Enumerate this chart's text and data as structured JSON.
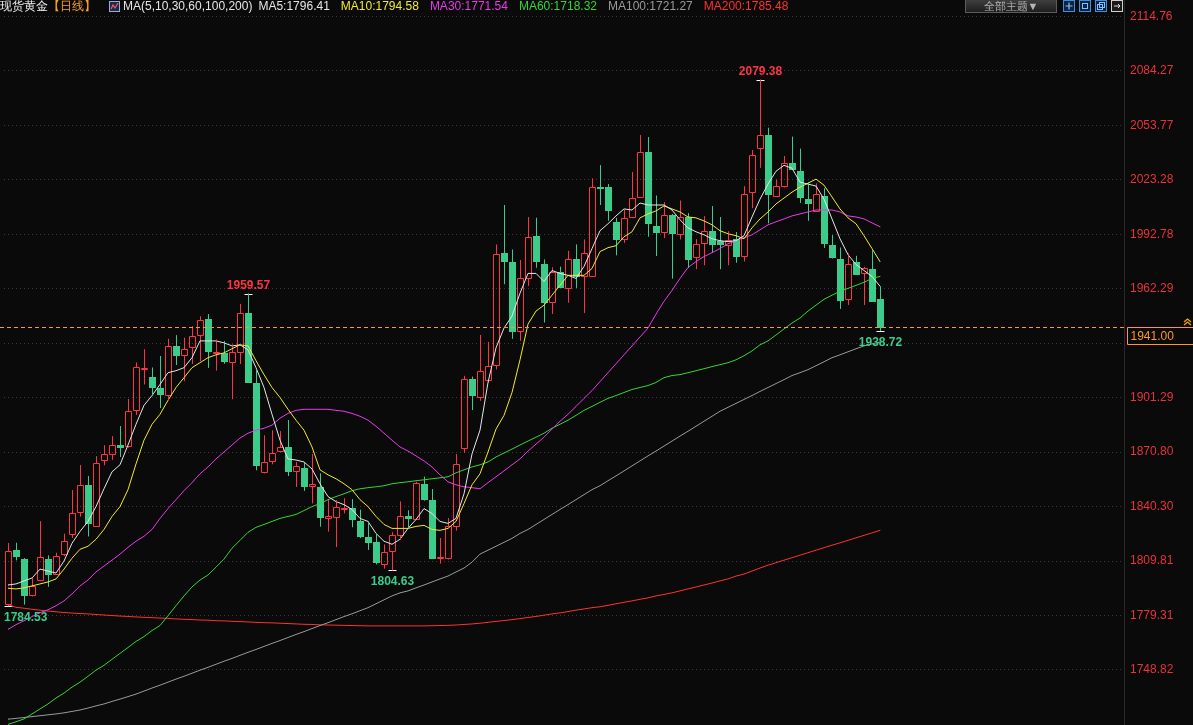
{
  "chart_data": {
    "type": "candlestick",
    "title": "现货黄金",
    "subtitle": "【日线】",
    "legend_title": "MA(5,10,30,60,100,200)",
    "categories": [
      null,
      null,
      null,
      null,
      null,
      null,
      null,
      null,
      null,
      null,
      null,
      null,
      null,
      null,
      null,
      null,
      null,
      null,
      null,
      null,
      null,
      null,
      null,
      null,
      null,
      null,
      null,
      null,
      null,
      null,
      null,
      null,
      null,
      null,
      null,
      null,
      null,
      null,
      null,
      null,
      null,
      null,
      null,
      null,
      null,
      null,
      null,
      null,
      null,
      null,
      null,
      null,
      null,
      null,
      null,
      null,
      null,
      null,
      null,
      null,
      null,
      null,
      null,
      null,
      null,
      null,
      null,
      null,
      null,
      null,
      null,
      null,
      null,
      null,
      null,
      null,
      null,
      null,
      null,
      null,
      null,
      null,
      null,
      null,
      null,
      null,
      null,
      null,
      null,
      null,
      null,
      null,
      null,
      null,
      null,
      null,
      null,
      null,
      null,
      null,
      null,
      null,
      null,
      null,
      null,
      null,
      null,
      null,
      null,
      null,
      null,
      null,
      null,
      null,
      null,
      null,
      null,
      null,
      null,
      null,
      null,
      null,
      null,
      null,
      null,
      null,
      null,
      null,
      null,
      null,
      null,
      null,
      null,
      null,
      null,
      null,
      null,
      null,
      null,
      null
    ],
    "ohlc": [
      [
        1785.7,
        1819.9,
        1784.53,
        1815.7
      ],
      [
        1815.9,
        1820.0,
        1810.3,
        1812.5
      ],
      [
        1810.7,
        1811.5,
        1785.5,
        1790.7
      ],
      [
        1790.7,
        1800.5,
        1790.0,
        1795.9
      ],
      [
        1799.2,
        1832.0,
        1798.6,
        1812.0
      ],
      [
        1811.2,
        1812.9,
        1795.5,
        1802.7
      ],
      [
        1802.3,
        1814.4,
        1802.0,
        1812.9
      ],
      [
        1813.5,
        1825.1,
        1812.5,
        1821.2
      ],
      [
        1825.1,
        1849.6,
        1822.7,
        1836.8
      ],
      [
        1837.5,
        1863.5,
        1834.8,
        1852.4
      ],
      [
        1852.5,
        1857.3,
        1823.7,
        1831.1
      ],
      [
        1829.6,
        1868.5,
        1829.2,
        1864.8
      ],
      [
        1866.6,
        1874.6,
        1863.5,
        1869.9
      ],
      [
        1869.9,
        1879.6,
        1866.6,
        1874.6
      ],
      [
        1874.6,
        1885.3,
        1868.1,
        1873.7
      ],
      [
        1874.0,
        1900.5,
        1873.3,
        1894.0
      ],
      [
        1894.6,
        1920.9,
        1891.8,
        1918.5
      ],
      [
        1917.3,
        1928.3,
        1908.8,
        1918.1
      ],
      [
        1913.1,
        1918.1,
        1902.4,
        1907.3
      ],
      [
        1907.0,
        1924.6,
        1895.5,
        1903.3
      ],
      [
        1902.9,
        1934.2,
        1899.9,
        1930.1
      ],
      [
        1930.1,
        1936.2,
        1919.6,
        1925.1
      ],
      [
        1925.1,
        1934.8,
        1910.7,
        1928.8
      ],
      [
        1929.6,
        1941.2,
        1920.3,
        1935.7
      ],
      [
        1936.6,
        1946.8,
        1921.8,
        1944.9
      ],
      [
        1945.3,
        1948.1,
        1918.1,
        1927.3
      ],
      [
        1926.2,
        1933.8,
        1916.6,
        1927.0
      ],
      [
        1926.2,
        1932.9,
        1920.3,
        1921.8
      ],
      [
        1921.4,
        1931.1,
        1900.5,
        1927.0
      ],
      [
        1927.0,
        1953.8,
        1920.3,
        1949.0
      ],
      [
        1948.6,
        1959.57,
        1909.9,
        1910.3
      ],
      [
        1909.8,
        1917.2,
        1860.7,
        1863.8
      ],
      [
        1859.4,
        1880.1,
        1858.9,
        1865.1
      ],
      [
        1865.7,
        1882.9,
        1864.0,
        1870.1
      ],
      [
        1871.2,
        1882.5,
        1870.9,
        1873.7
      ],
      [
        1873.7,
        1888.8,
        1857.5,
        1860.1
      ],
      [
        1860.1,
        1865.3,
        1851.4,
        1862.9
      ],
      [
        1862.0,
        1864.8,
        1849.2,
        1852.0
      ],
      [
        1852.0,
        1869.6,
        1842.2,
        1852.7
      ],
      [
        1851.4,
        1858.8,
        1829.2,
        1834.4
      ],
      [
        1833.8,
        1844.0,
        1826.4,
        1834.8
      ],
      [
        1834.4,
        1844.0,
        1817.7,
        1839.9
      ],
      [
        1838.8,
        1844.9,
        1836.6,
        1839.8
      ],
      [
        1839.4,
        1844.4,
        1828.8,
        1833.3
      ],
      [
        1832.5,
        1838.5,
        1822.7,
        1823.6
      ],
      [
        1823.1,
        1832.0,
        1816.2,
        1820.5
      ],
      [
        1820.3,
        1825.5,
        1807.9,
        1809.2
      ],
      [
        1808.3,
        1819.0,
        1805.7,
        1814.9
      ],
      [
        1815.3,
        1825.9,
        1804.63,
        1824.6
      ],
      [
        1824.6,
        1843.1,
        1821.8,
        1834.8
      ],
      [
        1834.8,
        1838.1,
        1828.3,
        1833.8
      ],
      [
        1833.5,
        1854.2,
        1832.9,
        1853.6
      ],
      [
        1852.7,
        1857.0,
        1843.6,
        1844.6
      ],
      [
        1844.0,
        1850.1,
        1811.2,
        1811.6
      ],
      [
        1811.4,
        1822.7,
        1808.5,
        1812.2
      ],
      [
        1811.6,
        1833.8,
        1810.7,
        1829.2
      ],
      [
        1829.2,
        1869.6,
        1827.0,
        1864.4
      ],
      [
        1873.1,
        1913.5,
        1870.5,
        1911.6
      ],
      [
        1911.6,
        1913.1,
        1894.4,
        1902.7
      ],
      [
        1901.4,
        1936.4,
        1899.7,
        1916.2
      ],
      [
        1911.4,
        1932.5,
        1909.7,
        1919.2
      ],
      [
        1919.6,
        1987.0,
        1917.2,
        1982.0
      ],
      [
        1982.5,
        2009.2,
        1964.9,
        1977.7
      ],
      [
        1977.4,
        1984.2,
        1934.4,
        1938.5
      ],
      [
        1938.5,
        1978.3,
        1933.3,
        1968.1
      ],
      [
        1968.1,
        2002.3,
        1964.0,
        1991.2
      ],
      [
        1991.6,
        2002.0,
        1974.2,
        1977.7
      ],
      [
        1976.4,
        1978.6,
        1943.5,
        1955.1
      ],
      [
        1955.1,
        1974.2,
        1948.3,
        1971.8
      ],
      [
        1971.8,
        1974.6,
        1962.9,
        1963.5
      ],
      [
        1962.9,
        1983.5,
        1954.6,
        1979.2
      ],
      [
        1979.2,
        1987.0,
        1962.9,
        1969.6
      ],
      [
        1969.6,
        1989.8,
        1948.8,
        1982.4
      ],
      [
        1969.6,
        2024.0,
        1969.0,
        2019.0
      ],
      [
        2019.4,
        2031.4,
        2009.2,
        2018.7
      ],
      [
        2019.0,
        2020.9,
        2000.5,
        2006.6
      ],
      [
        1999.9,
        2002.0,
        1981.1,
        1990.0
      ],
      [
        1990.0,
        2006.6,
        1988.1,
        2001.8
      ],
      [
        2002.3,
        2027.7,
        2001.8,
        2012.9
      ],
      [
        2013.5,
        2048.3,
        2013.1,
        2039.0
      ],
      [
        2039.0,
        2047.2,
        1991.6,
        1999.2
      ],
      [
        1997.2,
        2014.4,
        1980.7,
        1993.9
      ],
      [
        1993.9,
        2010.7,
        1990.7,
        2003.6
      ],
      [
        2003.6,
        2004.2,
        1968.1,
        1993.6
      ],
      [
        1992.7,
        2011.6,
        1990.0,
        2002.2
      ],
      [
        2002.3,
        2004.6,
        1974.0,
        1979.2
      ],
      [
        1980.1,
        1990.0,
        1973.3,
        1987.2
      ],
      [
        1987.9,
        2002.9,
        1975.5,
        1994.6
      ],
      [
        1994.8,
        2008.5,
        1982.9,
        1987.2
      ],
      [
        1988.8,
        2002.4,
        1973.3,
        1987.4
      ],
      [
        1987.0,
        1994.4,
        1975.5,
        1989.8
      ],
      [
        1990.3,
        1994.0,
        1977.0,
        1980.7
      ],
      [
        1980.7,
        2019.6,
        1977.7,
        2015.3
      ],
      [
        2016.2,
        2039.9,
        2007.5,
        2037.2
      ],
      [
        2041.2,
        2079.38,
        2030.1,
        2048.6
      ],
      [
        2048.6,
        2052.4,
        1999.0,
        2015.3
      ],
      [
        2014.0,
        2023.3,
        2013.6,
        2019.6
      ],
      [
        2019.6,
        2036.6,
        2019.0,
        2032.9
      ],
      [
        2032.5,
        2047.4,
        2028.8,
        2029.2
      ],
      [
        2028.3,
        2040.7,
        2010.3,
        2013.8
      ],
      [
        2012.5,
        2021.8,
        2000.5,
        2010.3
      ],
      [
        2006.1,
        2021.2,
        2005.5,
        2015.3
      ],
      [
        2014.4,
        2018.5,
        1985.1,
        1988.1
      ],
      [
        1986.6,
        1992.2,
        1979.2,
        1980.3
      ],
      [
        1979.2,
        1985.3,
        1951.1,
        1956.1
      ],
      [
        1956.6,
        1982.0,
        1953.3,
        1975.9
      ],
      [
        1977.0,
        1980.7,
        1970.0,
        1970.3
      ],
      [
        1970.9,
        1974.6,
        1953.3,
        1973.7
      ],
      [
        1973.3,
        1983.8,
        1955.1,
        1955.5
      ],
      [
        1956.6,
        1963.5,
        1938.72,
        1941.0
      ],
      null,
      null,
      null,
      null,
      null,
      null,
      null,
      null,
      null,
      null,
      null,
      null,
      null,
      null,
      null,
      null,
      null,
      null,
      null,
      null,
      null,
      null,
      null,
      null,
      null,
      null,
      null,
      null,
      null,
      null
    ],
    "colors": [
      "#ff3344",
      "#3ccb8b",
      "#3ccb8b",
      "#ff3344",
      "#ff3344",
      "#3ccb8b",
      "#ff3344",
      "#ff3344",
      "#ff3344",
      "#ff3344",
      "#3ccb8b",
      "#ff3344",
      "#ff3344",
      "#ff3344",
      "#3ccb8b",
      "#ff3344",
      "#ff3344",
      "#ff3344",
      "#3ccb8b",
      "#3ccb8b",
      "#ff3344",
      "#3ccb8b",
      "#ff3344",
      "#ff3344",
      "#ff3344",
      "#3ccb8b",
      "#ff3344",
      "#3ccb8b",
      "#ff3344",
      "#ff3344",
      "#3ccb8b",
      "#3ccb8b",
      "#ff3344",
      "#ff3344",
      "#ff3344",
      "#3ccb8b",
      "#ff3344",
      "#3ccb8b",
      "#ff3344",
      "#3ccb8b",
      "#ff3344",
      "#ff3344",
      "#ff3344",
      "#3ccb8b",
      "#3ccb8b",
      "#3ccb8b",
      "#3ccb8b",
      "#ff3344",
      "#ff3344",
      "#ff3344",
      "#3ccb8b",
      "#ff3344",
      "#3ccb8b",
      "#3ccb8b",
      "#ff3344",
      "#ff3344",
      "#ff3344",
      "#ff3344",
      "#3ccb8b",
      "#ff3344",
      "#ff3344",
      "#ff3344",
      "#3ccb8b",
      "#3ccb8b",
      "#ff3344",
      "#ff3344",
      "#3ccb8b",
      "#3ccb8b",
      "#ff3344",
      "#3ccb8b",
      "#ff3344",
      "#3ccb8b",
      "#ff3344",
      "#ff3344",
      "#3ccb8b",
      "#3ccb8b",
      "#3ccb8b",
      "#ff3344",
      "#ff3344",
      "#ff3344",
      "#3ccb8b",
      "#3ccb8b",
      "#ff3344",
      "#3ccb8b",
      "#ff3344",
      "#3ccb8b",
      "#ff3344",
      "#ff3344",
      "#3ccb8b",
      "#3ccb8b",
      "#ff3344",
      "#3ccb8b",
      "#ff3344",
      "#ff3344",
      "#ff3344",
      "#3ccb8b",
      "#ff3344",
      "#ff3344",
      "#3ccb8b",
      "#3ccb8b",
      "#3ccb8b",
      "#ff3344",
      "#3ccb8b",
      "#3ccb8b",
      "#3ccb8b",
      "#ff3344",
      "#3ccb8b",
      "#ff3344",
      "#3ccb8b",
      "#3ccb8b",
      null,
      null,
      null,
      null,
      null,
      null,
      null,
      null,
      null,
      null,
      null,
      null,
      null,
      null,
      null,
      null,
      null,
      null,
      null,
      null,
      null,
      null,
      null,
      null,
      null,
      null,
      null,
      null,
      null,
      null
    ],
    "series": [
      {
        "name": "MA5:1796.41",
        "type": "line",
        "color": "#e6e6e6",
        "values": [
          1796.41,
          1797.0,
          1798.7,
          1800.3,
          1805.3,
          1804.2,
          1803.1,
          1809.8,
          1819.8,
          1826.4,
          1832.0,
          1840.3,
          1850.3,
          1859.8,
          1863.7,
          1874.8,
          1886.4,
          1897.0,
          1902.5,
          1908.7,
          1915.3,
          1916.4,
          1918.1,
          1923.7,
          1933.1,
          1933.1,
          1933.1,
          1932.0,
          1930.3,
          1930.9,
          1928.1,
          1918.1,
          1907.0,
          1892.0,
          1877.5,
          1867.0,
          1866.4,
          1865.3,
          1861.4,
          1853.1,
          1845.9,
          1843.1,
          1841.4,
          1838.7,
          1833.7,
          1832.0,
          1825.3,
          1820.9,
          1819.2,
          1822.0,
          1828.1,
          1833.1,
          1839.2,
          1836.4,
          1832.0,
          1830.9,
          1833.7,
          1847.5,
          1869.8,
          1883.1,
          1909.8,
          1929.2,
          1940.3,
          1947.0,
          1959.8,
          1970.9,
          1970.9,
          1966.4,
          1972.5,
          1970.9,
          1969.8,
          1968.1,
          1974.8,
          1984.8,
          1994.8,
          1998.7,
          2003.1,
          2007.0,
          2006.4,
          2010.3,
          2009.2,
          2009.2,
          2009.2,
          2006.4,
          2000.9,
          1996.4,
          1994.2,
          1992.5,
          1990.3,
          1989.2,
          1988.7,
          1989.2,
          1992.0,
          2002.5,
          2012.5,
          2020.9,
          2028.1,
          2031.4,
          2029.8,
          2022.0,
          2020.9,
          2019.8,
          2012.5,
          2001.4,
          1990.3,
          1981.4,
          1975.9,
          1972.5,
          1969.2,
          1963.7,
          null,
          null,
          null,
          null,
          null,
          null,
          null,
          null,
          null,
          null,
          null,
          null,
          null,
          null,
          null,
          null,
          null,
          null,
          null,
          null,
          null,
          null,
          null,
          null,
          null,
          null,
          null,
          null,
          null,
          null
        ]
      },
      {
        "name": "MA10:1794.58",
        "type": "line",
        "color": "#f2ea2a",
        "values": [
          1794.58,
          1794.2,
          1794.8,
          1795.9,
          1797.0,
          1798.1,
          1799.8,
          1805.3,
          1811.4,
          1816.4,
          1818.1,
          1822.0,
          1827.5,
          1834.8,
          1840.3,
          1849.8,
          1864.2,
          1877.5,
          1886.4,
          1892.0,
          1899.8,
          1907.0,
          1912.5,
          1918.1,
          1920.9,
          1923.7,
          1925.3,
          1926.4,
          1928.7,
          1930.9,
          1930.3,
          1922.0,
          1914.2,
          1907.0,
          1901.4,
          1894.8,
          1888.7,
          1883.1,
          1873.7,
          1860.9,
          1858.1,
          1855.9,
          1853.1,
          1849.8,
          1844.2,
          1840.3,
          1834.8,
          1830.3,
          1828.1,
          1828.1,
          1828.1,
          1829.2,
          1829.8,
          1827.5,
          1827.0,
          1828.1,
          1832.0,
          1842.0,
          1852.5,
          1858.7,
          1870.9,
          1883.7,
          1891.4,
          1904.2,
          1922.5,
          1942.5,
          1949.8,
          1953.1,
          1958.7,
          1964.2,
          1969.8,
          1969.8,
          1969.8,
          1973.7,
          1983.1,
          1985.3,
          1986.4,
          1991.4,
          1994.2,
          2002.0,
          2004.2,
          2005.9,
          2008.7,
          2007.0,
          2005.3,
          2002.5,
          2002.0,
          2000.3,
          1998.1,
          1994.8,
          1993.1,
          1992.0,
          1990.3,
          1996.4,
          2001.4,
          2005.3,
          2009.8,
          2013.1,
          2016.4,
          2019.2,
          2021.4,
          2023.7,
          2020.3,
          2013.7,
          2007.0,
          2002.0,
          1998.7,
          1992.0,
          1984.8,
          1977.5,
          null,
          null,
          null,
          null,
          null,
          null,
          null,
          null,
          null,
          null,
          null,
          null,
          null,
          null,
          null,
          null,
          null,
          null,
          null,
          null,
          null,
          null,
          null,
          null,
          null,
          null,
          null,
          null,
          null,
          null
        ]
      },
      {
        "name": "MA30:1771.54",
        "type": "line",
        "color": "#e83ae8",
        "values": [
          1771.54,
          1774.2,
          1776.4,
          1778.7,
          1780.9,
          1782.5,
          1784.8,
          1787.5,
          1791.4,
          1795.9,
          1799.2,
          1803.7,
          1807.0,
          1810.3,
          1813.7,
          1817.5,
          1820.9,
          1823.7,
          1827.5,
          1833.7,
          1839.2,
          1844.2,
          1849.2,
          1853.7,
          1858.7,
          1862.5,
          1867.0,
          1870.9,
          1874.8,
          1878.7,
          1881.4,
          1883.1,
          1884.2,
          1885.9,
          1889.8,
          1892.5,
          1894.2,
          1894.8,
          1894.8,
          1894.8,
          1894.8,
          1894.2,
          1893.7,
          1892.5,
          1890.9,
          1888.7,
          1885.3,
          1881.4,
          1877.5,
          1873.7,
          1871.4,
          1868.7,
          1865.9,
          1862.5,
          1858.1,
          1854.2,
          1852.5,
          1851.4,
          1850.9,
          1850.3,
          1853.7,
          1857.0,
          1860.3,
          1863.7,
          1867.0,
          1871.4,
          1875.3,
          1879.2,
          1883.7,
          1888.1,
          1892.0,
          1896.4,
          1900.9,
          1905.3,
          1910.3,
          1915.3,
          1920.3,
          1925.3,
          1930.3,
          1935.3,
          1940.3,
          1948.1,
          1955.3,
          1961.4,
          1968.1,
          1974.2,
          1977.5,
          1980.3,
          1982.5,
          1984.8,
          1987.5,
          1989.2,
          1990.9,
          1992.5,
          1995.3,
          1998.1,
          1999.8,
          2001.4,
          2003.1,
          2004.2,
          2005.3,
          2006.4,
          2006.4,
          2006.4,
          2005.3,
          2003.1,
          2002.5,
          2001.4,
          1999.2,
          1997.0,
          null,
          null,
          null,
          null,
          null,
          null,
          null,
          null,
          null,
          null,
          null,
          null,
          null,
          null,
          null,
          null,
          null,
          null,
          null,
          null,
          null,
          null,
          null,
          null,
          null,
          null,
          null,
          null,
          null,
          null
        ]
      },
      {
        "name": "MA60:1718.32",
        "type": "line",
        "color": "#33d633",
        "values": [
          1718.32,
          1719.8,
          1721.4,
          1724.2,
          1727.0,
          1729.8,
          1733.1,
          1735.9,
          1739.2,
          1742.0,
          1745.3,
          1748.7,
          1751.4,
          1754.8,
          1758.1,
          1761.4,
          1764.8,
          1767.5,
          1770.9,
          1773.7,
          1779.2,
          1784.8,
          1790.3,
          1795.3,
          1799.2,
          1802.0,
          1806.4,
          1810.9,
          1817.0,
          1821.4,
          1825.9,
          1828.7,
          1830.3,
          1832.0,
          1833.7,
          1834.8,
          1835.9,
          1838.1,
          1840.3,
          1842.0,
          1844.2,
          1845.9,
          1847.5,
          1849.2,
          1850.3,
          1850.9,
          1851.4,
          1852.0,
          1853.1,
          1853.7,
          1854.2,
          1854.8,
          1855.3,
          1855.9,
          1856.4,
          1857.0,
          1859.2,
          1860.9,
          1862.5,
          1863.7,
          1865.3,
          1868.1,
          1870.3,
          1872.5,
          1874.8,
          1877.0,
          1879.2,
          1881.4,
          1884.2,
          1886.4,
          1888.7,
          1891.4,
          1894.2,
          1896.4,
          1898.7,
          1900.9,
          1902.5,
          1904.2,
          1905.9,
          1907.0,
          1908.1,
          1909.8,
          1912.5,
          1913.7,
          1914.2,
          1915.3,
          1916.4,
          1917.5,
          1918.7,
          1919.8,
          1920.9,
          1922.5,
          1924.8,
          1927.5,
          1930.9,
          1933.1,
          1936.4,
          1939.8,
          1943.1,
          1945.9,
          1949.8,
          1953.1,
          1956.4,
          1958.7,
          1960.9,
          1962.5,
          1964.2,
          1965.9,
          1968.1,
          1969.2,
          null,
          null,
          null,
          null,
          null,
          null,
          null,
          null,
          null,
          null,
          null,
          null,
          null,
          null,
          null,
          null,
          null,
          null,
          null,
          null,
          null,
          null,
          null,
          null,
          null,
          null,
          null,
          null,
          null,
          null
        ]
      },
      {
        "name": "MA100:1721.27",
        "type": "line",
        "color": "#9a9a9a",
        "values": [
          1721.27,
          1721.7,
          1722.2,
          1722.7,
          1723.2,
          1723.7,
          1724.2,
          1724.8,
          1725.6,
          1726.4,
          1727.5,
          1728.7,
          1729.8,
          1731.2,
          1732.5,
          1733.9,
          1735.3,
          1737.0,
          1738.7,
          1740.3,
          1742.0,
          1743.7,
          1745.3,
          1747.0,
          1748.7,
          1750.3,
          1752.0,
          1753.7,
          1755.3,
          1757.0,
          1758.7,
          1760.3,
          1762.0,
          1763.7,
          1765.3,
          1767.0,
          1768.7,
          1770.3,
          1772.0,
          1773.7,
          1775.3,
          1777.0,
          1778.7,
          1780.3,
          1782.0,
          1783.7,
          1785.9,
          1788.1,
          1790.3,
          1792.0,
          1793.1,
          1794.8,
          1796.4,
          1798.1,
          1799.8,
          1801.4,
          1803.7,
          1805.9,
          1809.2,
          1813.7,
          1815.9,
          1818.1,
          1820.3,
          1822.5,
          1825.3,
          1827.5,
          1830.3,
          1833.1,
          1835.9,
          1838.7,
          1841.4,
          1844.2,
          1847.0,
          1849.8,
          1852.0,
          1854.8,
          1857.5,
          1860.3,
          1863.1,
          1865.9,
          1868.7,
          1871.4,
          1874.2,
          1877.0,
          1879.8,
          1882.5,
          1885.3,
          1888.1,
          1890.9,
          1893.7,
          1895.9,
          1898.1,
          1900.3,
          1902.5,
          1904.8,
          1907.0,
          1909.2,
          1911.4,
          1913.7,
          1915.3,
          1917.0,
          1919.2,
          1921.4,
          1923.7,
          1925.3,
          1927.0,
          1928.7,
          1930.3,
          1931.4,
          1932.5,
          null,
          null,
          null,
          null,
          null,
          null,
          null,
          null,
          null,
          null,
          null,
          null,
          null,
          null,
          null,
          null,
          null,
          null,
          null,
          null,
          null,
          null,
          null,
          null,
          null,
          null,
          null,
          null,
          null,
          null
        ]
      },
      {
        "name": "MA200:1785.48",
        "type": "line",
        "color": "#ff3030",
        "values": [
          1785.48,
          1783.9,
          1783.4,
          1782.8,
          1782.3,
          1781.8,
          1781.4,
          1781.0,
          1780.7,
          1780.4,
          1780.2,
          1779.9,
          1779.6,
          1779.3,
          1779.0,
          1778.8,
          1778.5,
          1778.3,
          1778.1,
          1777.9,
          1777.7,
          1777.4,
          1777.2,
          1777.0,
          1776.8,
          1776.7,
          1776.4,
          1776.3,
          1776.1,
          1775.9,
          1775.7,
          1775.5,
          1775.3,
          1775.2,
          1775.0,
          1774.8,
          1774.6,
          1774.4,
          1774.3,
          1774.1,
          1774.0,
          1773.9,
          1773.8,
          1773.7,
          1773.6,
          1773.5,
          1773.5,
          1773.5,
          1773.5,
          1773.5,
          1773.5,
          1773.5,
          1773.5,
          1773.6,
          1773.7,
          1773.8,
          1774.0,
          1774.3,
          1774.6,
          1775.0,
          1775.5,
          1776.0,
          1776.5,
          1777.0,
          1777.6,
          1778.2,
          1778.8,
          1779.5,
          1780.2,
          1780.8,
          1781.5,
          1782.3,
          1783.0,
          1783.7,
          1784.2,
          1785.0,
          1785.9,
          1786.7,
          1787.5,
          1788.4,
          1789.2,
          1790.3,
          1791.1,
          1792.0,
          1793.1,
          1794.2,
          1795.3,
          1796.4,
          1797.5,
          1798.7,
          1799.8,
          1801.4,
          1802.5,
          1804.2,
          1805.9,
          1807.5,
          1808.9,
          1810.3,
          1811.7,
          1813.1,
          1814.5,
          1815.9,
          1817.3,
          1818.7,
          1820.0,
          1821.4,
          1822.8,
          1824.2,
          1825.6,
          1827.0,
          null,
          null,
          null,
          null,
          null,
          null,
          null,
          null,
          null,
          null,
          null,
          null,
          null,
          null,
          null,
          null,
          null,
          null,
          null,
          null,
          null,
          null,
          null,
          null,
          null,
          null,
          null,
          null,
          null,
          null
        ]
      }
    ],
    "ylim": [
      1718,
      2124
    ],
    "yticks": [
      2114.76,
      2084.27,
      2053.77,
      2023.28,
      1992.78,
      1962.29,
      {
        "value": 1931.79,
        "label": null
      },
      1901.29,
      {
        "value": 1870.8,
        "label": "1870.80"
      },
      {
        "value": 1840.3,
        "label": "1840.30"
      },
      1809.81,
      1779.31,
      1748.82
    ],
    "ref_lines": [
      {
        "axis": "y",
        "value": 1941,
        "label": "1941.00",
        "color": "#ff9a1f",
        "line_style": "dashed"
      }
    ],
    "annotations": [
      {
        "text": "2079.38",
        "y": 2079.38
      },
      {
        "text": "1959.57",
        "y": 1959.57
      },
      {
        "text": "1804.63",
        "y": 1804.63
      },
      {
        "text": "1784.53",
        "y": 1784.53
      },
      {
        "text": "1938.72",
        "y": 1938.72
      },
      "全部主题▼"
    ],
    "grid": "y",
    "legend": "top",
    "tick_labels": "y",
    "marker": "none",
    "line_style": "solid"
  }
}
